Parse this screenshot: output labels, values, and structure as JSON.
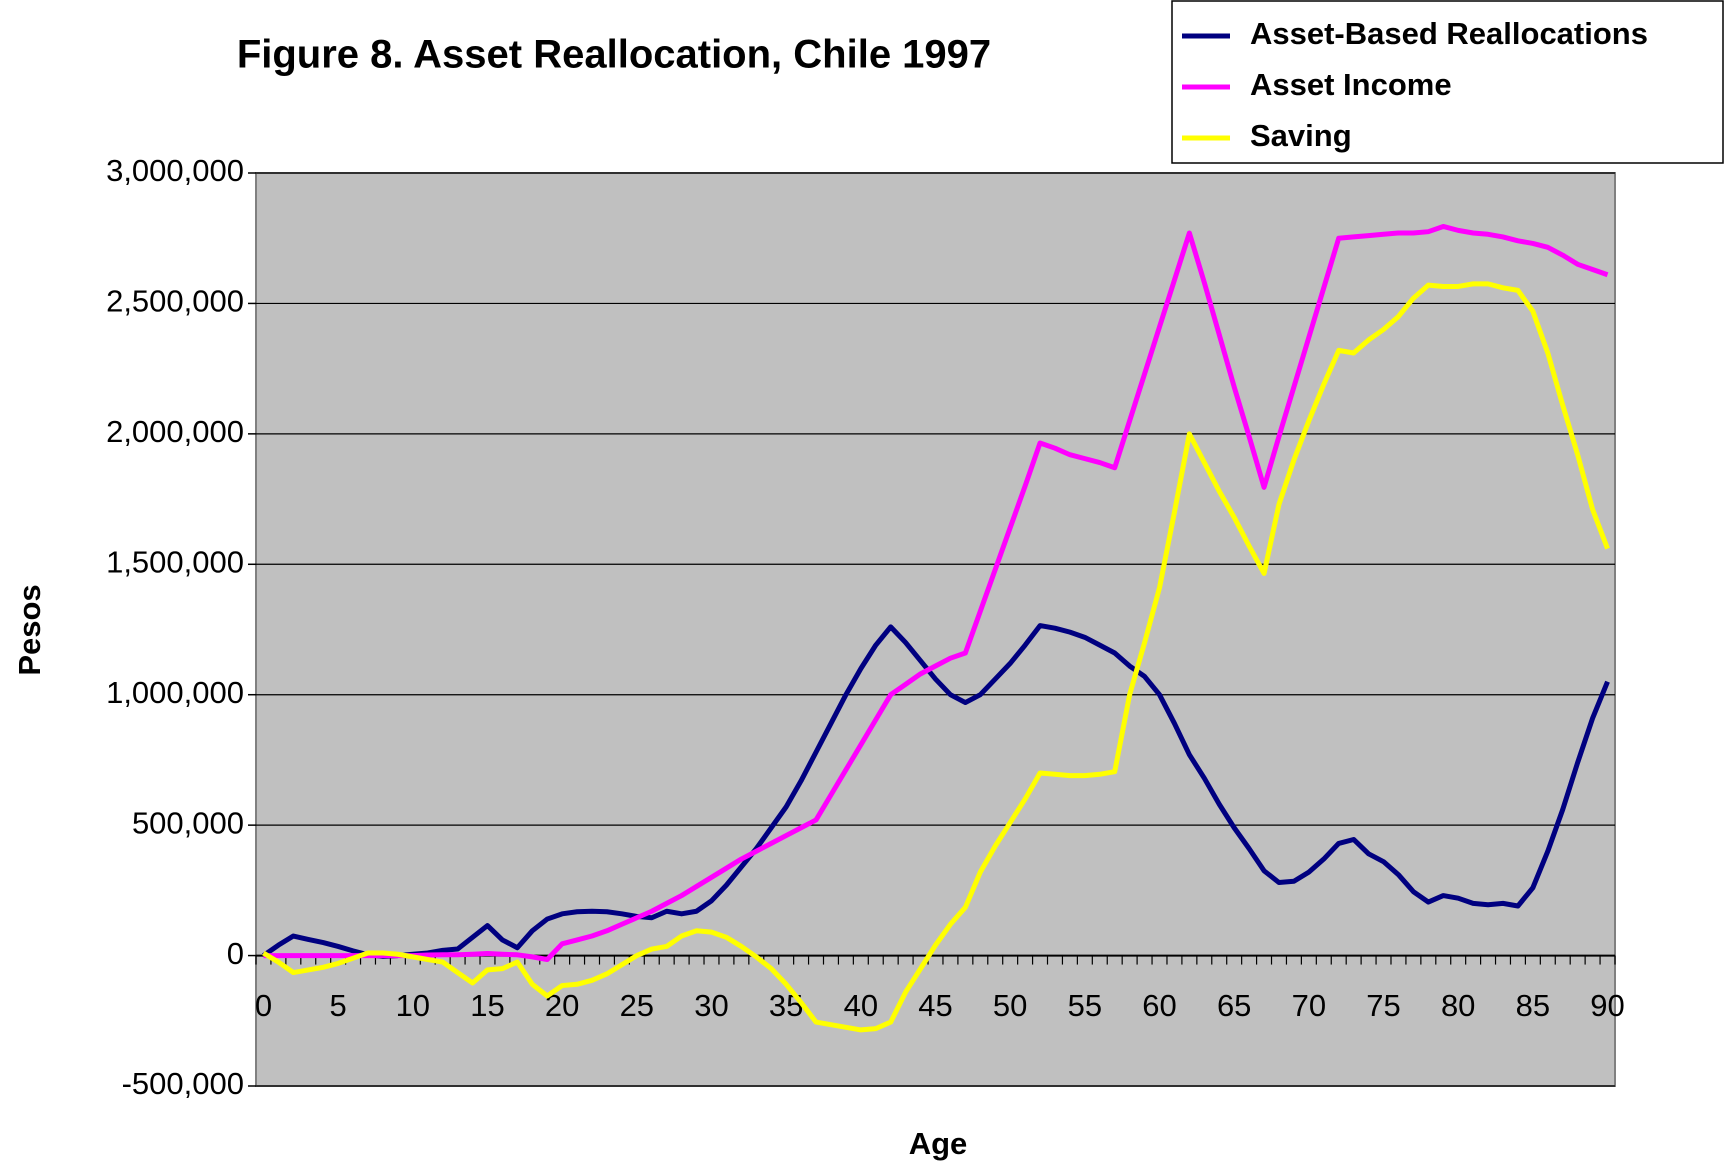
{
  "chart_data": {
    "type": "line",
    "title": "Figure 8. Asset Reallocation, Chile 1997",
    "x_label": "Age",
    "y_label": "Pesos",
    "categories": [
      "0",
      null,
      null,
      null,
      null,
      "5",
      null,
      null,
      null,
      null,
      "10",
      null,
      null,
      null,
      null,
      "15",
      null,
      null,
      null,
      null,
      "20",
      null,
      null,
      null,
      null,
      "25",
      null,
      null,
      null,
      null,
      "30",
      null,
      null,
      null,
      null,
      "35",
      null,
      null,
      null,
      null,
      "40",
      null,
      null,
      null,
      null,
      "45",
      null,
      null,
      null,
      null,
      "50",
      null,
      null,
      null,
      null,
      "55",
      null,
      null,
      null,
      null,
      "60",
      null,
      null,
      null,
      null,
      "65",
      null,
      null,
      null,
      null,
      "70",
      null,
      null,
      null,
      null,
      "75",
      null,
      null,
      null,
      null,
      "80",
      null,
      null,
      null,
      null,
      "85",
      null,
      null,
      null,
      null,
      "90"
    ],
    "series": [
      {
        "name": "Asset-Based Reallocations",
        "color": "#000080",
        "values": [
          0,
          40000,
          75000,
          62000,
          50000,
          35000,
          18000,
          3000,
          -3000,
          0,
          5000,
          10000,
          20000,
          25000,
          70000,
          115000,
          60000,
          30000,
          95000,
          140000,
          160000,
          168000,
          170000,
          168000,
          160000,
          150000,
          145000,
          170000,
          160000,
          170000,
          210000,
          270000,
          340000,
          410000,
          490000,
          570000,
          670000,
          780000,
          890000,
          1000000,
          1100000,
          1190000,
          1260000,
          1200000,
          1130000,
          1060000,
          1000000,
          970000,
          1000000,
          1060000,
          1120000,
          1190000,
          1265000,
          1255000,
          1240000,
          1220000,
          1190000,
          1160000,
          1110000,
          1070000,
          1000000,
          890000,
          770000,
          680000,
          580000,
          490000,
          410000,
          325000,
          280000,
          285000,
          320000,
          370000,
          430000,
          445000,
          390000,
          360000,
          310000,
          245000,
          205000,
          230000,
          220000,
          200000,
          195000,
          200000,
          190000,
          260000,
          400000,
          560000,
          740000,
          910000,
          1050000
        ]
      },
      {
        "name": "Asset Income",
        "color": "#ff00ff",
        "values": [
          0,
          0,
          0,
          0,
          0,
          0,
          0,
          0,
          0,
          0,
          0,
          2000,
          3000,
          3000,
          5000,
          8000,
          5000,
          3000,
          -5000,
          -15000,
          45000,
          60000,
          75000,
          95000,
          120000,
          145000,
          170000,
          200000,
          230000,
          265000,
          300000,
          335000,
          370000,
          400000,
          430000,
          460000,
          490000,
          520000,
          616000,
          712000,
          808000,
          904000,
          1000000,
          1040000,
          1080000,
          1110000,
          1140000,
          1160000,
          1320000,
          1480000,
          1640000,
          1800000,
          1965000,
          1945000,
          1920000,
          1905000,
          1890000,
          1870000,
          2050000,
          2230000,
          2410000,
          2590000,
          2770000,
          2580000,
          2380000,
          2180000,
          1990000,
          1795000,
          1990000,
          2180000,
          2370000,
          2560000,
          2750000,
          2755000,
          2760000,
          2765000,
          2770000,
          2770000,
          2775000,
          2795000,
          2780000,
          2770000,
          2765000,
          2755000,
          2740000,
          2730000,
          2715000,
          2685000,
          2650000,
          2630000,
          2610000
        ]
      },
      {
        "name": "Saving",
        "color": "#ffff00",
        "values": [
          10000,
          -25000,
          -65000,
          -55000,
          -45000,
          -30000,
          -10000,
          10000,
          10000,
          5000,
          -5000,
          -15000,
          -25000,
          -65000,
          -105000,
          -55000,
          -50000,
          -25000,
          -110000,
          -155000,
          -115000,
          -110000,
          -95000,
          -70000,
          -35000,
          0,
          25000,
          35000,
          75000,
          95000,
          90000,
          70000,
          35000,
          -5000,
          -50000,
          -110000,
          -180000,
          -255000,
          -265000,
          -275000,
          -285000,
          -280000,
          -255000,
          -140000,
          -50000,
          40000,
          120000,
          185000,
          320000,
          420000,
          510000,
          600000,
          700000,
          695000,
          690000,
          690000,
          695000,
          705000,
          1000000,
          1200000,
          1410000,
          1700000,
          2000000,
          1890000,
          1780000,
          1680000,
          1570000,
          1465000,
          1730000,
          1900000,
          2050000,
          2190000,
          2320000,
          2310000,
          2360000,
          2400000,
          2450000,
          2520000,
          2570000,
          2565000,
          2565000,
          2575000,
          2575000,
          2560000,
          2550000,
          2470000,
          2310000,
          2110000,
          1920000,
          1710000,
          1560000
        ]
      }
    ],
    "ylim": [
      -500000,
      3000000
    ],
    "yticks": [
      {
        "value": -500000,
        "label": "-500,000"
      },
      0,
      {
        "value": 500000,
        "label": "500,000"
      },
      {
        "value": 1000000,
        "label": "1,000,000"
      },
      {
        "value": 1500000,
        "label": "1,500,000"
      },
      {
        "value": 2000000,
        "label": "2,000,000"
      },
      {
        "value": 2500000,
        "label": "2,500,000"
      },
      {
        "value": 3000000,
        "label": "3,000,000"
      }
    ],
    "grid": true,
    "plot_background": "#c0c0c0",
    "legend_position": "top-right"
  }
}
